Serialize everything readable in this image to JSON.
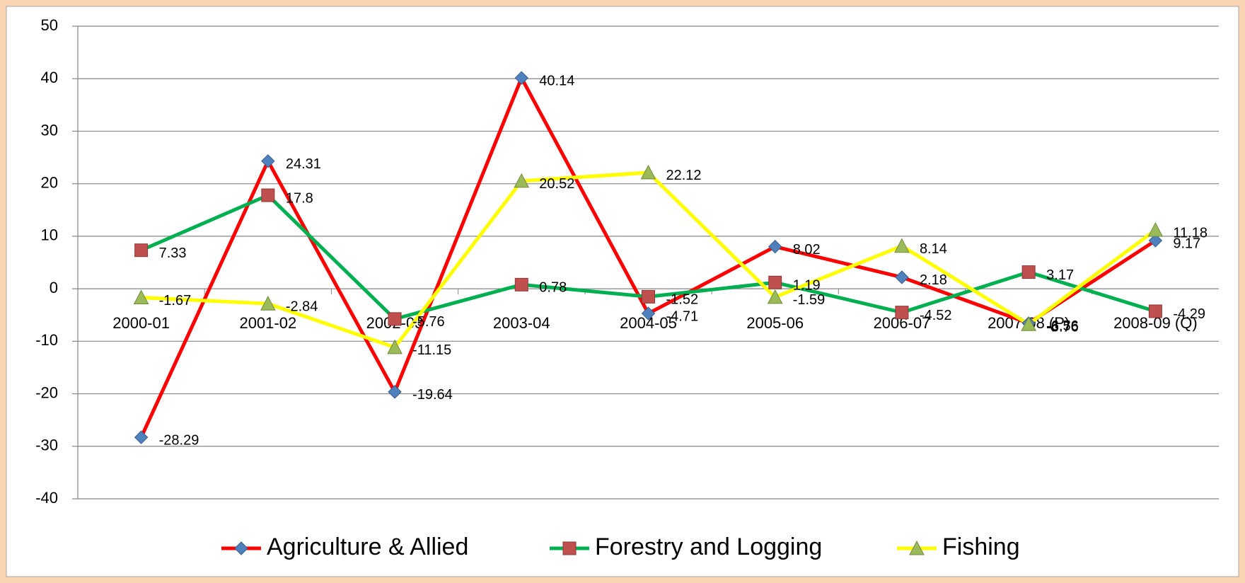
{
  "chart_data": {
    "type": "line",
    "categories": [
      "2000-01",
      "2001-02",
      "2002-03",
      "2003-04",
      "2004-05",
      "2005-06",
      "2006-07",
      "2007-08 (P)",
      "2008-09 (Q)"
    ],
    "series": [
      {
        "name": "Agriculture & Allied",
        "color": "#ff0000",
        "marker": "diamond",
        "marker_color": "#4f81bd",
        "values": [
          -28.29,
          24.31,
          -19.64,
          40.14,
          -4.71,
          8.02,
          2.18,
          -6.56,
          9.17
        ]
      },
      {
        "name": "Forestry and Logging",
        "color": "#00b050",
        "marker": "square",
        "marker_color": "#c0504d",
        "values": [
          7.33,
          17.8,
          -5.76,
          0.78,
          -1.52,
          1.19,
          -4.52,
          3.17,
          -4.29
        ]
      },
      {
        "name": "Fishing",
        "color": "#ffff00",
        "marker": "triangle",
        "marker_color": "#9bbb59",
        "values": [
          -1.67,
          -2.84,
          -11.15,
          20.52,
          22.12,
          -1.59,
          8.14,
          -6.76,
          11.18
        ]
      }
    ],
    "ylim": [
      -40,
      50
    ],
    "yticks": [
      -40,
      -30,
      -20,
      -10,
      0,
      10,
      20,
      30,
      40,
      50
    ],
    "grid": true,
    "legend": "bottom"
  }
}
